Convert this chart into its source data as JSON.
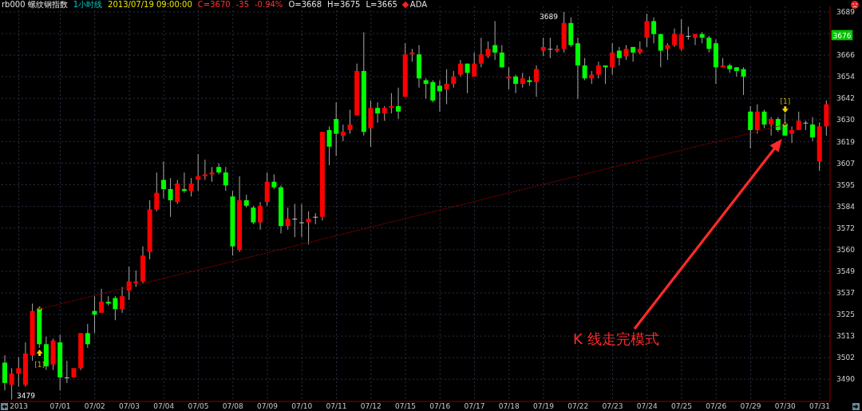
{
  "chart_data": {
    "type": "candlestick",
    "title": "rb000 螺纹钢指数",
    "subtitle": "1小时线",
    "categories": [
      null,
      null,
      "2013",
      null,
      null,
      null,
      null,
      null,
      "07/01",
      null,
      null,
      null,
      null,
      "07/02",
      null,
      null,
      null,
      null,
      "07/03",
      null,
      null,
      null,
      null,
      "07/04",
      null,
      null,
      null,
      null,
      "07/05",
      null,
      null,
      null,
      null,
      "07/08",
      null,
      null,
      null,
      null,
      "07/09",
      null,
      null,
      null,
      null,
      "07/10",
      null,
      null,
      null,
      null,
      "07/11",
      null,
      null,
      null,
      null,
      "07/12",
      null,
      null,
      null,
      null,
      "07/15",
      null,
      null,
      null,
      null,
      "07/16",
      null,
      null,
      null,
      null,
      "07/17",
      null,
      null,
      null,
      null,
      "07/18",
      null,
      null,
      null,
      null,
      "07/19",
      null,
      null,
      null,
      null,
      "07/22",
      null,
      null,
      null,
      null,
      "07/23",
      null,
      null,
      null,
      null,
      "07/24",
      null,
      null,
      null,
      null,
      "07/25",
      null,
      null,
      null,
      null,
      "07/26",
      null,
      null,
      null,
      null,
      "07/29",
      null,
      null,
      null,
      null,
      "07/30",
      null,
      null,
      null,
      null,
      "07/31",
      null
    ],
    "ohlc": [
      [
        3499,
        3503,
        3484,
        3488
      ],
      [
        3487,
        3496,
        3479,
        3493
      ],
      [
        3493,
        3502,
        3486,
        3496
      ],
      [
        3487,
        3510,
        3486,
        3504
      ],
      [
        3503,
        3531,
        3500,
        3527
      ],
      [
        3528,
        3529,
        3507,
        3509
      ],
      [
        3509,
        3513,
        3495,
        3497
      ],
      [
        3498,
        3512,
        3495,
        3511
      ],
      [
        3510,
        3514,
        3484,
        3491
      ],
      [
        3491,
        3500,
        3488,
        3491
      ],
      [
        3491,
        3496,
        3491,
        3496
      ],
      [
        3496,
        3515,
        3495,
        3515
      ],
      [
        3515,
        3520,
        3507,
        3509
      ],
      [
        3527,
        3535,
        3515,
        3525
      ],
      [
        3526,
        3539,
        3526,
        3532
      ],
      [
        3532,
        3535,
        3530,
        3531
      ],
      [
        3534,
        3535,
        3522,
        3528
      ],
      [
        3528,
        3540,
        3526,
        3535
      ],
      [
        3538,
        3551,
        3533,
        3543
      ],
      [
        3542,
        3549,
        3540,
        3543
      ],
      [
        3543,
        3562,
        3542,
        3557
      ],
      [
        3559,
        3587,
        3555,
        3582
      ],
      [
        3582,
        3602,
        3581,
        3591
      ],
      [
        3598,
        3608,
        3588,
        3593
      ],
      [
        3593,
        3599,
        3578,
        3587
      ],
      [
        3586,
        3598,
        3585,
        3596
      ],
      [
        3593,
        3602,
        3591,
        3592
      ],
      [
        3592,
        3599,
        3589,
        3596
      ],
      [
        3598,
        3612,
        3592,
        3600
      ],
      [
        3600,
        3609,
        3598,
        3601
      ],
      [
        3601,
        3605,
        3597,
        3602
      ],
      [
        3605,
        3607,
        3601,
        3602
      ],
      [
        3602,
        3605,
        3592,
        3595
      ],
      [
        3589,
        3592,
        3557,
        3562
      ],
      [
        3560,
        3600,
        3559,
        3587
      ],
      [
        3587,
        3590,
        3583,
        3584
      ],
      [
        3583,
        3584,
        3574,
        3575
      ],
      [
        3575,
        3586,
        3571,
        3584
      ],
      [
        3586,
        3602,
        3584,
        3597
      ],
      [
        3597,
        3601,
        3593,
        3594
      ],
      [
        3594,
        3595,
        3569,
        3573
      ],
      [
        3573,
        3583,
        3571,
        3577
      ],
      [
        3577,
        3585,
        3567,
        3577
      ],
      [
        3575,
        3585,
        3567,
        3575
      ],
      [
        3575,
        3581,
        3563,
        3577
      ],
      [
        3578,
        3580,
        3574,
        3578
      ],
      [
        3578,
        3624,
        3576,
        3624
      ],
      [
        3625,
        3627,
        3606,
        3616
      ],
      [
        3631,
        3640,
        3611,
        3623
      ],
      [
        3622,
        3628,
        3619,
        3624
      ],
      [
        3625,
        3636,
        3623,
        3628
      ],
      [
        3633,
        3661,
        3633,
        3657
      ],
      [
        3657,
        3678,
        3622,
        3624
      ],
      [
        3626,
        3641,
        3616,
        3637
      ],
      [
        3637,
        3640,
        3629,
        3634
      ],
      [
        3634,
        3638,
        3630,
        3637
      ],
      [
        3637,
        3645,
        3634,
        3638
      ],
      [
        3638,
        3648,
        3631,
        3635
      ],
      [
        3643,
        3672,
        3643,
        3666
      ],
      [
        3666,
        3669,
        3662,
        3667
      ],
      [
        3666,
        3671,
        3648,
        3653
      ],
      [
        3652,
        3653,
        3642,
        3650
      ],
      [
        3651,
        3652,
        3640,
        3641
      ],
      [
        3649,
        3652,
        3635,
        3646
      ],
      [
        3647,
        3658,
        3639,
        3650
      ],
      [
        3650,
        3657,
        3648,
        3654
      ],
      [
        3655,
        3663,
        3654,
        3661
      ],
      [
        3661,
        3661,
        3645,
        3656
      ],
      [
        3654,
        3667,
        3654,
        3661
      ],
      [
        3661,
        3675,
        3659,
        3666
      ],
      [
        3665,
        3673,
        3664,
        3669
      ],
      [
        3671,
        3684,
        3663,
        3667
      ],
      [
        3667,
        3671,
        3659,
        3659
      ],
      [
        3653,
        3659,
        3647,
        3654
      ],
      [
        3654,
        3655,
        3645,
        3650
      ],
      [
        3650,
        3656,
        3648,
        3653
      ],
      [
        3652,
        3654,
        3649,
        3651
      ],
      [
        3651,
        3660,
        3643,
        3658
      ],
      [
        3668,
        3675,
        3665,
        3670
      ],
      [
        3669,
        3675,
        3664,
        3669
      ],
      [
        3668,
        3671,
        3667,
        3669
      ],
      [
        3669,
        3689,
        3667,
        3683
      ],
      [
        3683,
        3686,
        3670,
        3671
      ],
      [
        3672,
        3675,
        3642,
        3660
      ],
      [
        3660,
        3664,
        3652,
        3653
      ],
      [
        3653,
        3657,
        3650,
        3655
      ],
      [
        3655,
        3662,
        3653,
        3660
      ],
      [
        3660,
        3660,
        3650,
        3659
      ],
      [
        3659,
        3672,
        3655,
        3667
      ],
      [
        3668,
        3670,
        3660,
        3664
      ],
      [
        3665,
        3671,
        3663,
        3669
      ],
      [
        3670,
        3670,
        3662,
        3667
      ],
      [
        3667,
        3673,
        3666,
        3669
      ],
      [
        3675,
        3688,
        3670,
        3684
      ],
      [
        3684,
        3686,
        3672,
        3677
      ],
      [
        3677,
        3677,
        3659,
        3668
      ],
      [
        3669,
        3672,
        3663,
        3671
      ],
      [
        3671,
        3680,
        3670,
        3677
      ],
      [
        3669,
        3685,
        3668,
        3677
      ],
      [
        3676,
        3681,
        3674,
        3676
      ],
      [
        3675,
        3677,
        3671,
        3677
      ],
      [
        3677,
        3678,
        3672,
        3675
      ],
      [
        3675,
        3676,
        3667,
        3669
      ],
      [
        3672,
        3674,
        3650,
        3659
      ],
      [
        3659,
        3664,
        3659,
        3660
      ],
      [
        3660,
        3661,
        3656,
        3658
      ],
      [
        3659,
        3659,
        3654,
        3657
      ],
      [
        3658,
        3659,
        3644,
        3654
      ],
      [
        3635,
        3638,
        3615,
        3625
      ],
      [
        3625,
        3639,
        3623,
        3635
      ],
      [
        3635,
        3636,
        3626,
        3628
      ],
      [
        3628,
        3632,
        3622,
        3631
      ],
      [
        3631,
        3632,
        3624,
        3625
      ],
      [
        3628,
        3634,
        3622,
        3622
      ],
      [
        3623,
        3627,
        3618,
        3625
      ],
      [
        3625,
        3635,
        3625,
        3630
      ],
      [
        3629,
        3630,
        3625,
        3629
      ],
      [
        3628,
        3632,
        3619,
        3621
      ],
      [
        3608,
        3629,
        3603,
        3627
      ],
      [
        3627,
        3641,
        3622,
        3639
      ]
    ],
    "colors": [
      "#00ff00",
      "#ff0000",
      "#ff0000",
      "#ff0000",
      "#ff0000",
      "#00ff00",
      "#00ff00",
      "#ff0000",
      "#00ff00",
      "#c0c0c0",
      "#ff0000",
      "#ff0000",
      "#00ff00",
      "#00ff00",
      "#ff0000",
      "#00ff00",
      "#00ff00",
      "#ff0000",
      "#ff0000",
      "#ff0000",
      "#ff0000",
      "#ff0000",
      "#ff0000",
      "#00ff00",
      "#00ff00",
      "#ff0000",
      "#00ff00",
      "#ff0000",
      "#ff0000",
      "#ff0000",
      "#ff0000",
      "#00ff00",
      "#00ff00",
      "#00ff00",
      "#ff0000",
      "#00ff00",
      "#00ff00",
      "#ff0000",
      "#ff0000",
      "#00ff00",
      "#00ff00",
      "#ff0000",
      "#c0c0c0",
      "#c0c0c0",
      "#ff0000",
      "#c0c0c0",
      "#ff0000",
      "#00ff00",
      "#00ff00",
      "#ff0000",
      "#ff0000",
      "#ff0000",
      "#00ff00",
      "#ff0000",
      "#00ff00",
      "#ff0000",
      "#ff0000",
      "#00ff00",
      "#ff0000",
      "#ff0000",
      "#00ff00",
      "#00ff00",
      "#00ff00",
      "#00ff00",
      "#ff0000",
      "#ff0000",
      "#ff0000",
      "#00ff00",
      "#ff0000",
      "#ff0000",
      "#ff0000",
      "#00ff00",
      "#00ff00",
      "#ff0000",
      "#00ff00",
      "#ff0000",
      "#00ff00",
      "#ff0000",
      "#ff0000",
      "#c0c0c0",
      "#ff0000",
      "#ff0000",
      "#00ff00",
      "#00ff00",
      "#00ff00",
      "#ff0000",
      "#ff0000",
      "#00ff00",
      "#ff0000",
      "#00ff00",
      "#ff0000",
      "#00ff00",
      "#ff0000",
      "#ff0000",
      "#00ff00",
      "#00ff00",
      "#ff0000",
      "#ff0000",
      "#ff0000",
      "#c0c0c0",
      "#ff0000",
      "#00ff00",
      "#00ff00",
      "#00ff00",
      "#ff0000",
      "#00ff00",
      "#00ff00",
      "#00ff00",
      "#00ff00",
      "#ff0000",
      "#00ff00",
      "#ff0000",
      "#00ff00",
      "#00ff00",
      "#ff0000",
      "#ff0000",
      "#c0c0c0",
      "#00ff00",
      "#ff0000",
      "#ff0000"
    ],
    "series": [
      {
        "type": "line",
        "color": "#8b0000",
        "line_style": "dotted",
        "values": [
          null,
          null,
          null,
          null,
          null,
          3528,
          null,
          null,
          null,
          null,
          null,
          null,
          null,
          null,
          null,
          null,
          null,
          null,
          null,
          null,
          null,
          null,
          null,
          null,
          null,
          null,
          null,
          null,
          null,
          null,
          null,
          null,
          null,
          null,
          null,
          null,
          null,
          null,
          null,
          null,
          null,
          null,
          null,
          null,
          null,
          null,
          null,
          null,
          null,
          null,
          null,
          null,
          null,
          null,
          null,
          null,
          null,
          null,
          null,
          null,
          null,
          null,
          null,
          null,
          null,
          null,
          null,
          null,
          null,
          null,
          null,
          null,
          null,
          null,
          null,
          null,
          null,
          null,
          null,
          null,
          null,
          null,
          null,
          null,
          null,
          null,
          null,
          null,
          null,
          null,
          null,
          null,
          null,
          null,
          null,
          null,
          null,
          null,
          null,
          null,
          null,
          null,
          null,
          null,
          null,
          null,
          null,
          null,
          null,
          null,
          null,
          null,
          null,
          3628,
          null,
          null,
          null,
          null,
          null,
          null
        ]
      }
    ],
    "ylim": [
      3478,
      3692
    ],
    "yticks": [
      3490,
      {
        "value": 3501.7,
        "label": "3502"
      },
      {
        "value": 3513.4,
        "label": "3513"
      },
      {
        "value": 3525.1,
        "label": "3525"
      },
      {
        "value": 3536.8,
        "label": "3537"
      },
      {
        "value": 3548.5,
        "label": "3549"
      },
      {
        "value": 3560.2,
        "label": "3560"
      },
      {
        "value": 3571.9,
        "label": "3572"
      },
      {
        "value": 3583.6,
        "label": "3584"
      },
      {
        "value": 3595.4,
        "label": "3595"
      },
      {
        "value": 3607.1,
        "label": "3607"
      },
      {
        "value": 3618.8,
        "label": "3619"
      },
      {
        "value": 3630.5,
        "label": "3630"
      },
      {
        "value": 3642.2,
        "label": "3642"
      },
      {
        "value": 3653.9,
        "label": "3654"
      },
      {
        "value": 3665.6,
        "label": "3666"
      },
      {
        "value": 3677.3,
        "label": null
      },
      3689
    ],
    "grid": true,
    "marker": "circle",
    "annotations": [
      "2013/07/19 09:00:00",
      "C=3670",
      "-35",
      "-0.94%",
      "O=3668",
      "H=3675",
      "L=3665",
      "ADA",
      "3479",
      "3689",
      "[1]",
      "[1]",
      "K 线走完模式",
      "3676"
    ]
  }
}
